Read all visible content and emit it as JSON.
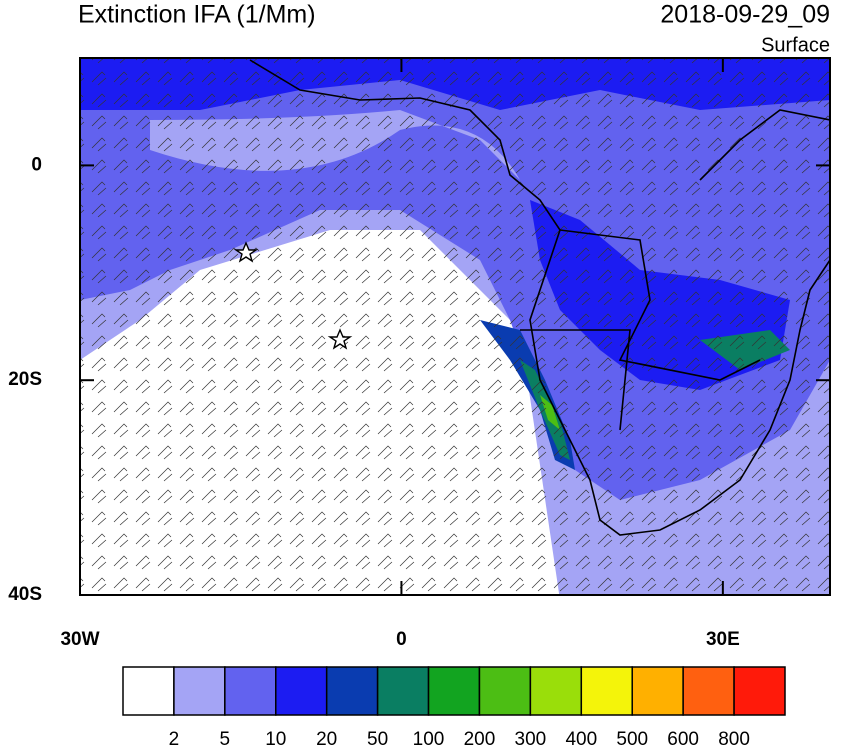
{
  "map": {
    "title": "Extinction IFA (1/Mm)",
    "datetime": "2018-09-29_09",
    "level": "Surface",
    "xlim": [
      -30,
      40
    ],
    "ylim": [
      -40,
      10
    ],
    "xticks": [
      {
        "value": -30,
        "label": "30W"
      },
      0,
      {
        "value": 30,
        "label": "30E"
      }
    ],
    "yticks": [
      0,
      {
        "value": -20,
        "label": "20S"
      },
      {
        "value": -40,
        "label": "40S"
      }
    ],
    "colorbar": {
      "levels": [
        2,
        5,
        10,
        20,
        50,
        100,
        200,
        300,
        400,
        500,
        600,
        800
      ],
      "colors": [
        "#ffffff",
        "#a4a4f5",
        "#6262ef",
        "#1c1cf2",
        "#0a3cb0",
        "#0a7e62",
        "#12a420",
        "#4cbe14",
        "#9ade0a",
        "#f4f40a",
        "#ffb000",
        "#ff6010",
        "#ff1a0a"
      ]
    }
  }
}
